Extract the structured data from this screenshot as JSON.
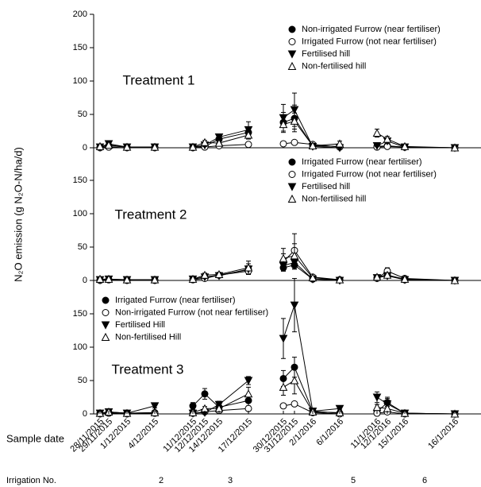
{
  "y_label": "N₂O emission (g N₂O-N/ha/d)",
  "x_label": "Sample date",
  "irrigation": {
    "label": "Irrigation No.",
    "values": [
      2,
      3,
      5,
      6
    ]
  },
  "chart_data": [
    {
      "type": "line",
      "title": "Treatment 1",
      "ylim": [
        0,
        200
      ],
      "yticks": [
        0,
        50,
        100,
        150,
        200
      ],
      "legend": "upper right",
      "series": [
        {
          "name": "Non-irrigated Furrow (near fertiliser)",
          "color": "#000000",
          "marker": "filled-circle",
          "values": [
            1,
            3,
            1,
            1,
            1,
            2,
            13,
            23,
            38,
            44,
            3,
            2,
            2,
            3,
            1,
            0
          ],
          "errors": [
            0.5,
            1,
            0.5,
            0.5,
            0.5,
            1,
            5,
            8,
            15,
            20,
            2,
            1,
            1,
            2,
            0.5,
            0.3
          ]
        },
        {
          "name": "Irrigated Furrow (not near fertiliser)",
          "color": "#000000",
          "marker": "open-circle",
          "values": [
            0,
            1,
            0,
            0,
            0,
            1,
            3,
            5,
            6,
            8,
            5,
            1,
            1,
            2,
            1,
            0
          ],
          "errors": [
            0.3,
            0.5,
            0.3,
            0.3,
            0.3,
            0.5,
            1,
            2,
            3,
            3,
            2,
            0.5,
            0.5,
            1,
            0.5,
            0.2
          ]
        },
        {
          "name": "Fertilised hill",
          "color": "#000000",
          "marker": "filled-triangle-down",
          "values": [
            1,
            6,
            1,
            1,
            1,
            4,
            16,
            27,
            45,
            57,
            2,
            0,
            3,
            10,
            1,
            0
          ],
          "errors": [
            0.5,
            2,
            0.5,
            0.5,
            0.5,
            2,
            4,
            12,
            20,
            25,
            1,
            0.5,
            1,
            3,
            0.5,
            0.2
          ]
        },
        {
          "name": "Non-fertilised hill",
          "color": "#000000",
          "marker": "open-triangle-up",
          "values": [
            2,
            4,
            1,
            1,
            1,
            8,
            7,
            19,
            35,
            40,
            3,
            6,
            22,
            13,
            2,
            0
          ],
          "errors": [
            1,
            2,
            0.5,
            0.5,
            0.5,
            3,
            3,
            6,
            10,
            12,
            2,
            4,
            6,
            4,
            1,
            0.2
          ]
        }
      ]
    },
    {
      "type": "line",
      "title": "Treatment 2",
      "ylim": [
        0,
        200
      ],
      "yticks": [
        0,
        50,
        100,
        150
      ],
      "legend": "upper right",
      "series": [
        {
          "name": "Irrigated Furrow (near fertiliser)",
          "color": "#000000",
          "marker": "filled-circle",
          "values": [
            1,
            1,
            1,
            1,
            2,
            5,
            8,
            16,
            19,
            23,
            2,
            1,
            4,
            8,
            1,
            0
          ],
          "errors": [
            0.5,
            0.5,
            0.5,
            0.5,
            1,
            2,
            3,
            6,
            5,
            6,
            1,
            0.5,
            2,
            3,
            0.5,
            0.2
          ]
        },
        {
          "name": "Irrigated Furrow (not near fertiliser)",
          "color": "#000000",
          "marker": "open-circle",
          "values": [
            0,
            1,
            0,
            0,
            1,
            3,
            8,
            14,
            28,
            45,
            5,
            1,
            3,
            14,
            3,
            0
          ],
          "errors": [
            0.3,
            0.5,
            0.3,
            0.3,
            0.5,
            1,
            3,
            5,
            12,
            25,
            2,
            0.5,
            2,
            5,
            1,
            0.2
          ]
        },
        {
          "name": "Fertilised hill",
          "color": "#000000",
          "marker": "filled-triangle-down",
          "values": [
            1,
            2,
            1,
            1,
            2,
            5,
            7,
            17,
            22,
            27,
            2,
            0,
            4,
            7,
            1,
            0
          ],
          "errors": [
            0.5,
            1,
            0.5,
            0.5,
            1,
            2,
            3,
            8,
            8,
            10,
            1,
            0.5,
            2,
            3,
            0.5,
            0.2
          ]
        },
        {
          "name": "Non-fertilised hill",
          "color": "#000000",
          "marker": "open-triangle-up",
          "values": [
            2,
            2,
            1,
            1,
            2,
            8,
            9,
            19,
            33,
            37,
            4,
            1,
            5,
            8,
            2,
            0
          ],
          "errors": [
            1,
            1,
            0.5,
            0.5,
            1,
            3,
            3,
            10,
            15,
            18,
            2,
            0.5,
            2,
            3,
            1,
            0.2
          ]
        }
      ]
    },
    {
      "type": "line",
      "title": "Treatment 3",
      "ylim": [
        0,
        200
      ],
      "yticks": [
        0,
        50,
        100,
        150
      ],
      "legend": "upper left",
      "categories": [
        "28/11/2015",
        "29/11/2015",
        "1/12/2015",
        "4/12/2015",
        "11/12/2015",
        "12/12/2015",
        "14/12/2015",
        "17/12/2015",
        "30/12/2015",
        "31/12/2015",
        "2/1/2016",
        "6/1/2016",
        "11/1/2016",
        "12/1/2016",
        "15/1/2016",
        "16/1/2016"
      ],
      "series": [
        {
          "name": "Irrigated Furrow (near fertiliser)",
          "color": "#000000",
          "marker": "filled-circle",
          "values": [
            1,
            2,
            1,
            2,
            12,
            30,
            10,
            20,
            53,
            70,
            4,
            1,
            3,
            17,
            1,
            0
          ],
          "errors": [
            0.5,
            1,
            0.5,
            1,
            5,
            8,
            4,
            8,
            12,
            15,
            2,
            0.5,
            1,
            6,
            0.5,
            0.2
          ]
        },
        {
          "name": "Non-irrigated Furrow (not near fertiliser)",
          "color": "#000000",
          "marker": "open-circle",
          "values": [
            0,
            1,
            0,
            1,
            1,
            3,
            5,
            8,
            12,
            15,
            2,
            0,
            1,
            3,
            0,
            0
          ],
          "errors": [
            0.3,
            0.5,
            0.3,
            0.5,
            0.5,
            1,
            2,
            3,
            3,
            3,
            1,
            0.3,
            0.5,
            1,
            0.3,
            0.2
          ]
        },
        {
          "name": "Fertilised Hill",
          "color": "#000000",
          "marker": "filled-triangle-down",
          "values": [
            1,
            3,
            1,
            12,
            1,
            2,
            14,
            50,
            113,
            163,
            4,
            8,
            25,
            15,
            1,
            0
          ],
          "errors": [
            0.5,
            1,
            0.5,
            3,
            0.5,
            1,
            5,
            6,
            30,
            40,
            2,
            2,
            8,
            10,
            0.5,
            0.2
          ]
        },
        {
          "name": "Non-fertilised Hill",
          "color": "#000000",
          "marker": "open-triangle-up",
          "values": [
            1,
            3,
            1,
            2,
            2,
            8,
            8,
            30,
            40,
            50,
            3,
            2,
            10,
            8,
            1,
            0
          ],
          "errors": [
            0.5,
            1,
            0.5,
            1,
            1,
            3,
            3,
            10,
            12,
            20,
            1,
            1,
            4,
            3,
            0.5,
            0.2
          ]
        }
      ]
    }
  ]
}
